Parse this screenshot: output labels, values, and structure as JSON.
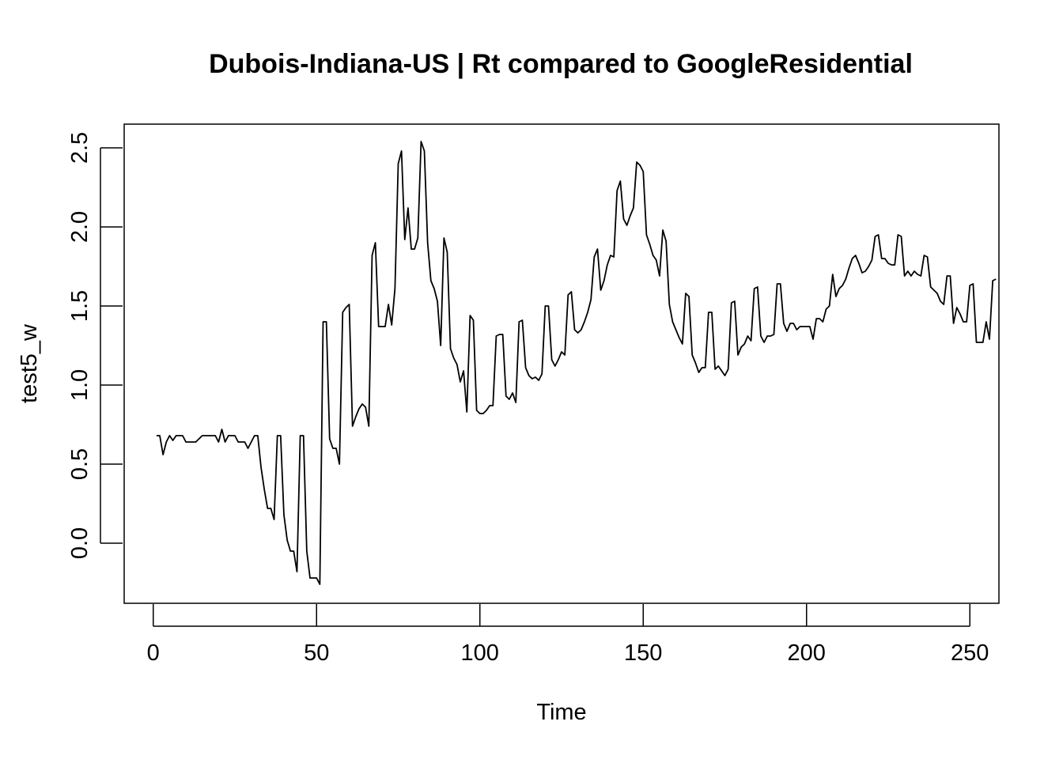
{
  "chart_data": {
    "type": "line",
    "title": "Dubois-Indiana-US | Rt compared to GoogleResidential",
    "xlabel": "Time",
    "ylabel": "test5_w",
    "xlim": [
      -8.9,
      258.9
    ],
    "ylim": [
      -0.38,
      2.65
    ],
    "x_ticks": [
      0,
      50,
      100,
      150,
      200,
      250
    ],
    "y_ticks": [
      0.0,
      0.5,
      1.0,
      1.5,
      2.0,
      2.5
    ],
    "x_tick_labels": [
      "0",
      "50",
      "100",
      "150",
      "200",
      "250"
    ],
    "y_tick_labels": [
      "0.0",
      "0.5",
      "1.0",
      "1.5",
      "2.0",
      "2.5"
    ],
    "grid": false,
    "line_color": "#000000",
    "series": [
      {
        "x_start": 1,
        "values": [
          0.68,
          0.68,
          0.56,
          0.64,
          0.68,
          0.65,
          0.68,
          0.68,
          0.68,
          0.64,
          0.64,
          0.64,
          0.64,
          0.66,
          0.68,
          0.68,
          0.68,
          0.68,
          0.68,
          0.64,
          0.72,
          0.64,
          0.68,
          0.68,
          0.68,
          0.64,
          0.64,
          0.64,
          0.6,
          0.64,
          0.68,
          0.68,
          0.48,
          0.34,
          0.22,
          0.22,
          0.15,
          0.68,
          0.68,
          0.18,
          0.02,
          -0.05,
          -0.05,
          -0.18,
          0.68,
          0.68,
          -0.05,
          -0.22,
          -0.22,
          -0.22,
          -0.26,
          1.4,
          1.4,
          0.66,
          0.6,
          0.6,
          0.5,
          1.46,
          1.49,
          1.51,
          0.74,
          0.8,
          0.85,
          0.88,
          0.86,
          0.74,
          1.82,
          1.9,
          1.37,
          1.37,
          1.37,
          1.51,
          1.38,
          1.61,
          2.4,
          2.48,
          1.92,
          2.12,
          1.86,
          1.86,
          1.93,
          2.54,
          2.48,
          1.9,
          1.66,
          1.61,
          1.53,
          1.25,
          1.93,
          1.84,
          1.23,
          1.17,
          1.13,
          1.02,
          1.09,
          0.83,
          1.44,
          1.41,
          0.84,
          0.82,
          0.82,
          0.84,
          0.87,
          0.87,
          1.31,
          1.32,
          1.32,
          0.93,
          0.91,
          0.95,
          0.89,
          1.4,
          1.41,
          1.11,
          1.06,
          1.04,
          1.05,
          1.03,
          1.07,
          1.5,
          1.5,
          1.16,
          1.12,
          1.16,
          1.21,
          1.19,
          1.57,
          1.59,
          1.35,
          1.33,
          1.35,
          1.4,
          1.46,
          1.54,
          1.81,
          1.86,
          1.6,
          1.66,
          1.76,
          1.82,
          1.81,
          2.23,
          2.29,
          2.05,
          2.01,
          2.07,
          2.12,
          2.41,
          2.39,
          2.35,
          1.95,
          1.89,
          1.82,
          1.79,
          1.69,
          1.98,
          1.91,
          1.51,
          1.4,
          1.35,
          1.3,
          1.26,
          1.58,
          1.56,
          1.19,
          1.14,
          1.08,
          1.11,
          1.11,
          1.46,
          1.46,
          1.1,
          1.12,
          1.09,
          1.06,
          1.1,
          1.52,
          1.53,
          1.19,
          1.24,
          1.26,
          1.31,
          1.28,
          1.61,
          1.62,
          1.31,
          1.27,
          1.31,
          1.31,
          1.32,
          1.64,
          1.64,
          1.39,
          1.34,
          1.39,
          1.39,
          1.35,
          1.37,
          1.37,
          1.37,
          1.37,
          1.29,
          1.42,
          1.42,
          1.4,
          1.48,
          1.5,
          1.7,
          1.56,
          1.61,
          1.63,
          1.67,
          1.74,
          1.8,
          1.82,
          1.77,
          1.71,
          1.72,
          1.75,
          1.79,
          1.94,
          1.95,
          1.8,
          1.8,
          1.77,
          1.76,
          1.76,
          1.95,
          1.94,
          1.69,
          1.72,
          1.69,
          1.72,
          1.7,
          1.69,
          1.82,
          1.81,
          1.62,
          1.6,
          1.58,
          1.53,
          1.51,
          1.69,
          1.69,
          1.39,
          1.49,
          1.45,
          1.4,
          1.4,
          1.63,
          1.64,
          1.27,
          1.27,
          1.27,
          1.4,
          1.29,
          1.66,
          1.67
        ]
      }
    ]
  }
}
